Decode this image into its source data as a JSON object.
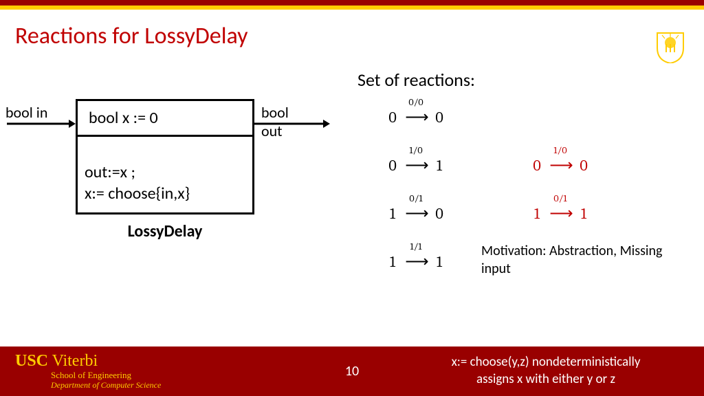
{
  "colors": {
    "cardinal": "#990000",
    "gold": "#ffcc00",
    "title": "#c00000",
    "text": "#000000",
    "red_reaction": "#c00000",
    "footer_bg": "#990000",
    "footer_gold": "#ffcc00",
    "footer_white": "#ffffff"
  },
  "title": "Reactions for LossyDelay",
  "diagram": {
    "label_in": "bool in",
    "label_out": "bool out",
    "box_top": "bool x := 0",
    "box_line1": "out:=x ;",
    "box_line2": "x:= choose{in,x}",
    "caption": "LossyDelay"
  },
  "reactions": {
    "heading": "Set of reactions:",
    "rows": [
      {
        "black": {
          "from": "0",
          "io": "0/0",
          "to": "0"
        }
      },
      {
        "black": {
          "from": "0",
          "io": "1/0",
          "to": "1"
        },
        "red": {
          "from": "0",
          "io": "1/0",
          "to": "0"
        }
      },
      {
        "black": {
          "from": "1",
          "io": "0/1",
          "to": "0"
        },
        "red": {
          "from": "1",
          "io": "0/1",
          "to": "1"
        }
      },
      {
        "black": {
          "from": "1",
          "io": "1/1",
          "to": "1"
        }
      }
    ]
  },
  "motivation": "Motivation: Abstraction, Missing input",
  "footer": {
    "usc": "USC",
    "viterbi": " Viterbi",
    "school": "School of Engineering",
    "dept": "Department of Computer Science",
    "page": "10",
    "note_l1": "x:= choose(y,z) nondeterministically",
    "note_l2": "assigns x with either y or z"
  }
}
